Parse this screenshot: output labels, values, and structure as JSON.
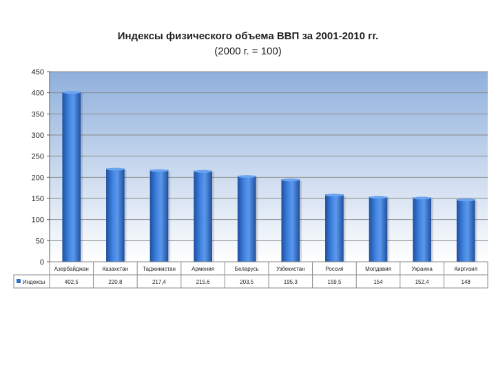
{
  "chart_data": {
    "type": "bar",
    "title": "Индексы физического объема ВВП за 2001-2010 гг.",
    "subtitle": "(2000 г. = 100)",
    "categories": [
      "Азербайджан",
      "Казахстан",
      "Таджикистан",
      "Армения",
      "Беларусь",
      "Узбекистан",
      "Россия",
      "Молдавия",
      "Украина",
      "Киргизия"
    ],
    "series": [
      {
        "name": "Индексы",
        "values": [
          402.5,
          220.8,
          217.4,
          215.6,
          203.5,
          195.3,
          159.5,
          154,
          152.4,
          148
        ],
        "value_labels": [
          "402,5",
          "220,8",
          "217,4",
          "215,6",
          "203,5",
          "195,3",
          "159,5",
          "154",
          "152,4",
          "148"
        ]
      }
    ],
    "ylim": [
      0,
      450
    ],
    "yticks": [
      0,
      50,
      100,
      150,
      200,
      250,
      300,
      350,
      400,
      450
    ],
    "grid": true,
    "data_table": true,
    "colors": {
      "bar": "#2f6fcf",
      "plot_bg_top": "#8fb0dc",
      "plot_bg_bottom": "#ffffff",
      "grid": "#8a8a8a"
    }
  }
}
